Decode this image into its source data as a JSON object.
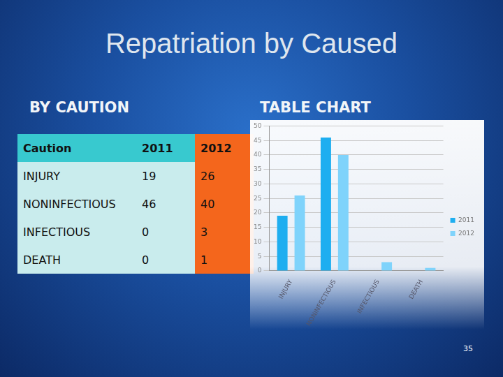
{
  "title": "Repatriation by Caused",
  "left_heading": "BY CAUTION",
  "right_heading": "TABLE CHART",
  "table": {
    "header": [
      "Caution",
      "2011",
      "2012"
    ],
    "rows": [
      [
        "INJURY",
        19,
        26
      ],
      [
        "NONINFECTIOUS",
        46,
        40
      ],
      [
        "INFECTIOUS",
        0,
        3
      ],
      [
        "DEATH",
        0,
        1
      ]
    ]
  },
  "chart_data": {
    "type": "bar",
    "categories": [
      "INJURY",
      "NONINFECTIOUS",
      "INFECTIOUS",
      "DEATH"
    ],
    "series": [
      {
        "name": "2011",
        "color": "#1eaef0",
        "values": [
          19,
          46,
          0,
          0
        ]
      },
      {
        "name": "2012",
        "color": "#7fd3fb",
        "values": [
          26,
          40,
          3,
          1
        ]
      }
    ],
    "ylim": [
      0,
      50
    ],
    "yticks": [
      0,
      5,
      10,
      15,
      20,
      25,
      30,
      35,
      40,
      45,
      50
    ],
    "grid": true,
    "legend": "right"
  },
  "page_number": 35
}
